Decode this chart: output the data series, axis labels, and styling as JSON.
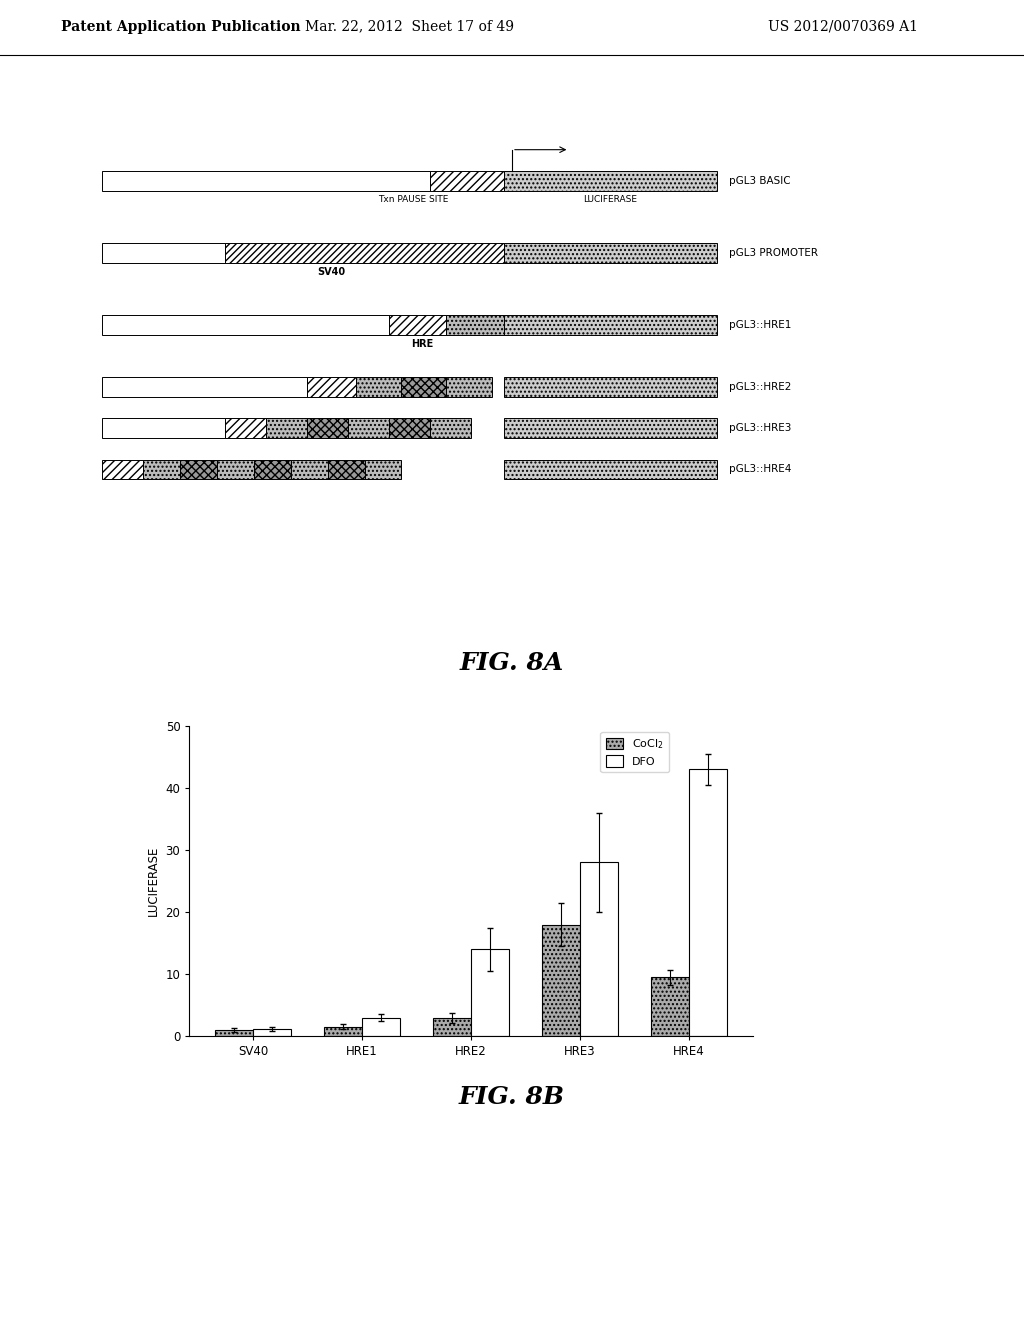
{
  "header_left": "Patent Application Publication",
  "header_mid": "Mar. 22, 2012  Sheet 17 of 49",
  "header_right": "US 2012/0070369 A1",
  "fig8a_title": "FIG. 8A",
  "fig8b_title": "FIG. 8B",
  "diagram_labels": [
    "pGL3 BASIC",
    "pGL3 PROMOTER",
    "pGL3::HRE1",
    "pGL3::HRE2",
    "pGL3::HRE3",
    "pGL3::HRE4"
  ],
  "sub_labels_basic": [
    "Txn PAUSE SITE",
    "LUCIFERASE"
  ],
  "sub_label_promoter": "SV40",
  "sub_label_hre1": "HRE",
  "bar_categories": [
    "SV40",
    "HRE1",
    "HRE2",
    "HRE3",
    "HRE4"
  ],
  "CoCl2_values": [
    1.0,
    1.5,
    3.0,
    18.0,
    9.5
  ],
  "CoCl2_errors": [
    0.3,
    0.4,
    0.8,
    3.5,
    1.2
  ],
  "DFO_values": [
    1.2,
    3.0,
    14.0,
    28.0,
    43.0
  ],
  "DFO_errors": [
    0.3,
    0.6,
    3.5,
    8.0,
    2.5
  ],
  "ylabel": "LUCIFERASE",
  "ylim": [
    0,
    50
  ],
  "yticks": [
    0,
    10,
    20,
    30,
    40,
    50
  ],
  "cocl2_color": "#aaaaaa",
  "dfo_color": "#ffffff",
  "cocl2_label": "CoCl2",
  "dfo_label": "DFO",
  "bg_color": "#ffffff"
}
